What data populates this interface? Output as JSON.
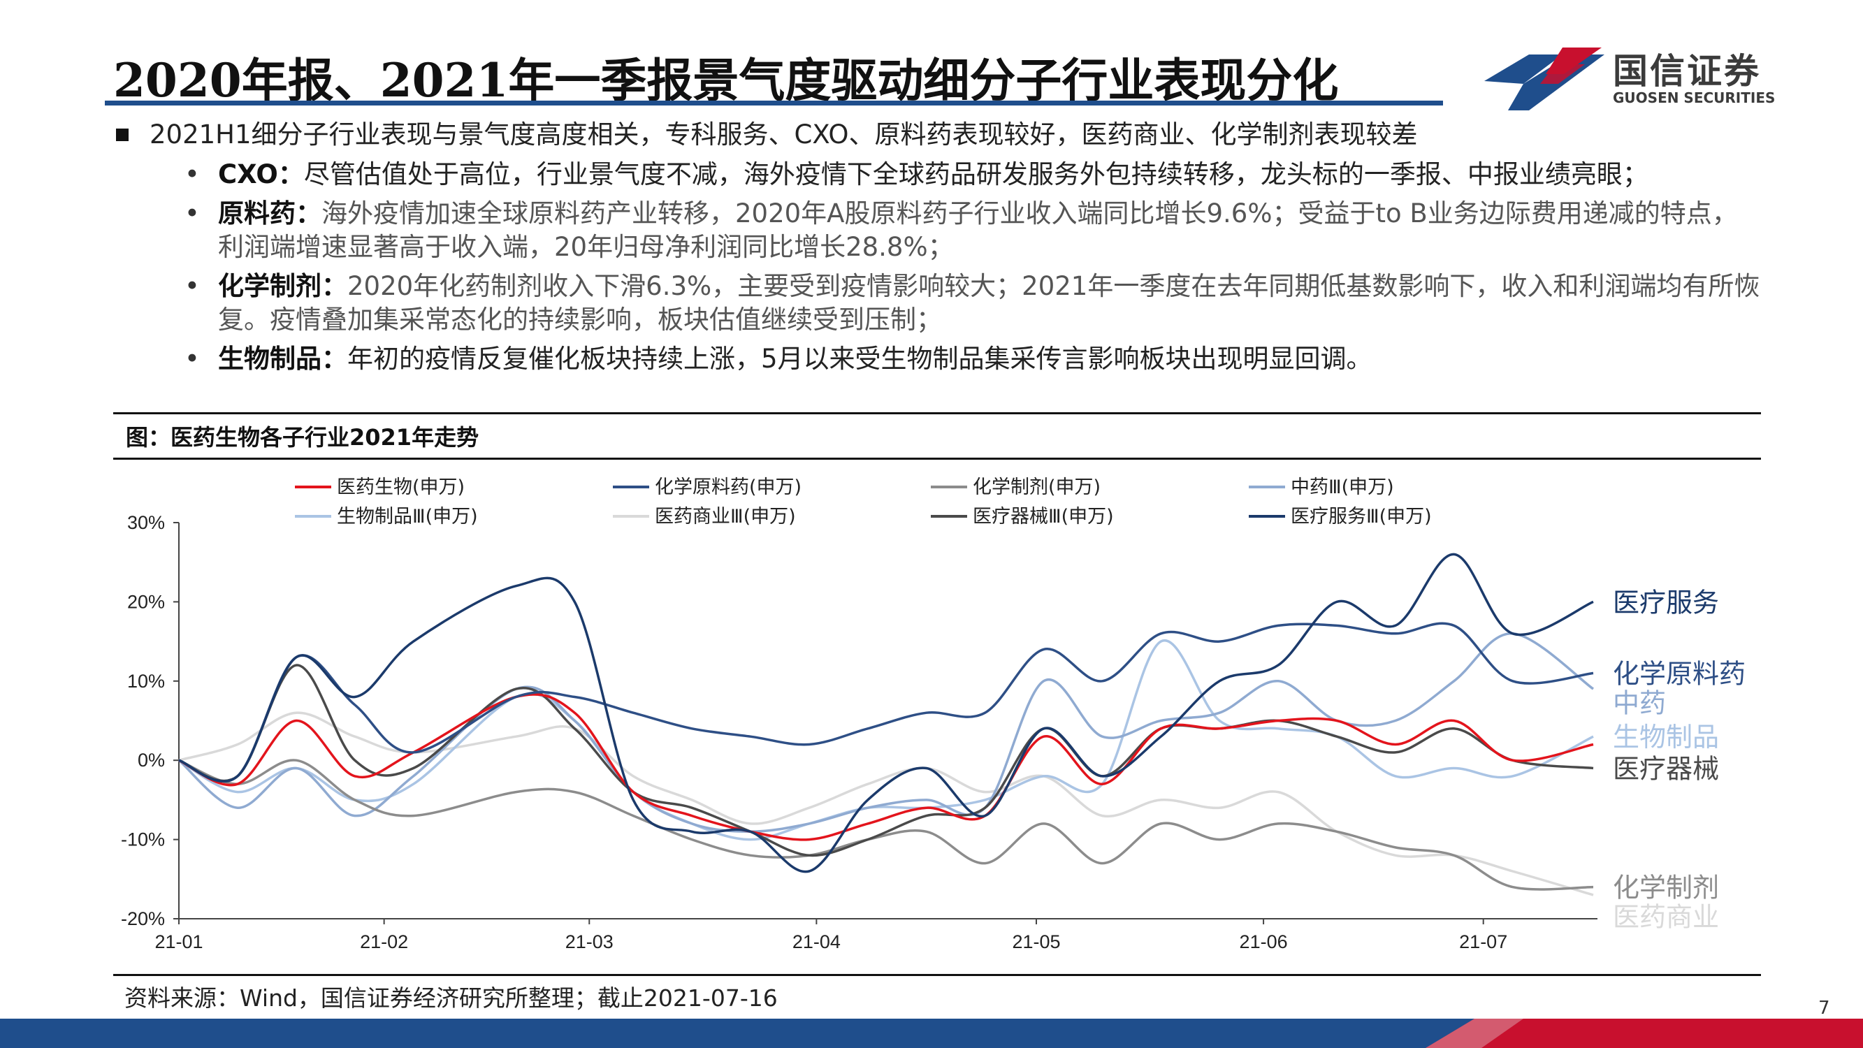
{
  "slide": {
    "title": "2020年报、2021年一季报景气度驱动细分子行业表现分化",
    "page_number": "7",
    "brand_color": "#1f4e8c",
    "accent_color": "#c8102e"
  },
  "logo": {
    "name_cn": "国信证券",
    "name_en": "GUOSEN SECURITIES"
  },
  "bullets": {
    "main": "2021H1细分子行业表现与景气度高度相关，专科服务、CXO、原料药表现较好，医药商业、化学制剂表现较差",
    "sub": [
      {
        "lead": "CXO：",
        "text": "尽管估值处于高位，行业景气度不减，海外疫情下全球药品研发服务外包持续转移，龙头标的一季报、中报业绩亮眼；"
      },
      {
        "lead": "原料药：",
        "text": "海外疫情加速全球原料药产业转移，2020年A股原料药子行业收入端同比增长9.6%；受益于to B业务边际费用递减的特点，利润端增速显著高于收入端，20年归母净利润同比增长28.8%；"
      },
      {
        "lead": "化学制剂：",
        "text": "2020年化药制剂收入下滑6.3%，主要受到疫情影响较大；2021年一季度在去年同期低基数影响下，收入和利润端均有所恢复。疫情叠加集采常态化的持续影响，板块估值继续受到压制；"
      },
      {
        "lead": "生物制品：",
        "text": "年初的疫情反复催化板块持续上涨，5月以来受生物制品集采传言影响板块出现明显回调。"
      }
    ]
  },
  "figure": {
    "label": "图：医药生物各子行业2021年走势",
    "source": "资料来源：Wind，国信证券经济研究所整理；截止2021-07-16"
  },
  "chart_data": {
    "type": "line",
    "title": "医药生物各子行业2021年走势",
    "x_tick_labels": [
      "21-01",
      "21-02",
      "21-03",
      "21-04",
      "21-05",
      "21-06",
      "21-07"
    ],
    "x": [
      "2021-01-04",
      "2021-01-12",
      "2021-01-20",
      "2021-01-28",
      "2021-02-05",
      "2021-02-19",
      "2021-02-27",
      "2021-03-07",
      "2021-03-15",
      "2021-03-23",
      "2021-03-31",
      "2021-04-08",
      "2021-04-16",
      "2021-04-24",
      "2021-05-02",
      "2021-05-10",
      "2021-05-18",
      "2021-05-26",
      "2021-06-03",
      "2021-06-11",
      "2021-06-19",
      "2021-06-27",
      "2021-07-05",
      "2021-07-16"
    ],
    "ylim": [
      -20,
      30
    ],
    "y_ticks": [
      -20,
      -10,
      0,
      10,
      20,
      30
    ],
    "y_tick_format": "percent",
    "grid": false,
    "legend_position": "top",
    "series": [
      {
        "name": "医药生物(申万)",
        "color": "#e3141c",
        "end_label": "",
        "values": [
          0,
          -3,
          5,
          -2,
          1,
          8,
          6,
          -4,
          -7,
          -9,
          -10,
          -8,
          -6,
          -7,
          3,
          -3,
          4,
          4,
          5,
          5,
          2,
          5,
          0,
          2
        ]
      },
      {
        "name": "化学原料药(申万)",
        "color": "#2e4f86",
        "end_label": "化学原料药",
        "values": [
          0,
          -2,
          13,
          7,
          1,
          8,
          8,
          6,
          4,
          3,
          2,
          4,
          6,
          6,
          14,
          10,
          16,
          15,
          17,
          17,
          16,
          17,
          10,
          11
        ]
      },
      {
        "name": "化学制剂(申万)",
        "color": "#8c8c8c",
        "end_label": "化学制剂",
        "values": [
          0,
          -3,
          0,
          -5,
          -7,
          -4,
          -4,
          -7,
          -10,
          -12,
          -12,
          -10,
          -9,
          -13,
          -8,
          -13,
          -8,
          -10,
          -8,
          -9,
          -11,
          -12,
          -16,
          -16
        ]
      },
      {
        "name": "中药Ⅲ(申万)",
        "color": "#8faad1",
        "end_label": "中药",
        "values": [
          0,
          -6,
          -1,
          -7,
          -2,
          9,
          5,
          -4,
          -8,
          -9,
          -8,
          -6,
          -5,
          -6,
          10,
          3,
          5,
          6,
          10,
          5,
          5,
          10,
          16,
          9
        ]
      },
      {
        "name": "生物制品Ⅲ(申万)",
        "color": "#aac4e4",
        "end_label": "生物制品",
        "values": [
          0,
          -4,
          -1,
          -5,
          -3,
          8,
          5,
          -4,
          -8,
          -10,
          -8,
          -6,
          -6,
          -5,
          -2,
          -3,
          15,
          5,
          4,
          3,
          -2,
          -1,
          -2,
          3
        ]
      },
      {
        "name": "医药商业Ⅲ(申万)",
        "color": "#d9d9d9",
        "end_label": "医药商业",
        "values": [
          0,
          2,
          6,
          3,
          1,
          3,
          4,
          -2,
          -5,
          -8,
          -6,
          -3,
          -1,
          -4,
          -2,
          -7,
          -5,
          -6,
          -4,
          -9,
          -12,
          -12,
          -14,
          -17
        ]
      },
      {
        "name": "医疗器械Ⅲ(申万)",
        "color": "#4a4a4a",
        "end_label": "医疗器械",
        "values": [
          0,
          -2,
          12,
          0,
          -1,
          9,
          4,
          -4,
          -6,
          -9,
          -12,
          -10,
          -7,
          -6,
          4,
          -2,
          4,
          4,
          5,
          3,
          1,
          4,
          0,
          -1
        ]
      },
      {
        "name": "医疗服务Ⅲ(申万)",
        "color": "#1b3a6b",
        "end_label": "医疗服务",
        "values": [
          0,
          -2,
          13,
          8,
          15,
          22,
          20,
          -5,
          -9,
          -9,
          -14,
          -5,
          -1,
          -7,
          4,
          -2,
          3,
          10,
          12,
          20,
          17,
          26,
          16,
          20
        ]
      }
    ]
  }
}
